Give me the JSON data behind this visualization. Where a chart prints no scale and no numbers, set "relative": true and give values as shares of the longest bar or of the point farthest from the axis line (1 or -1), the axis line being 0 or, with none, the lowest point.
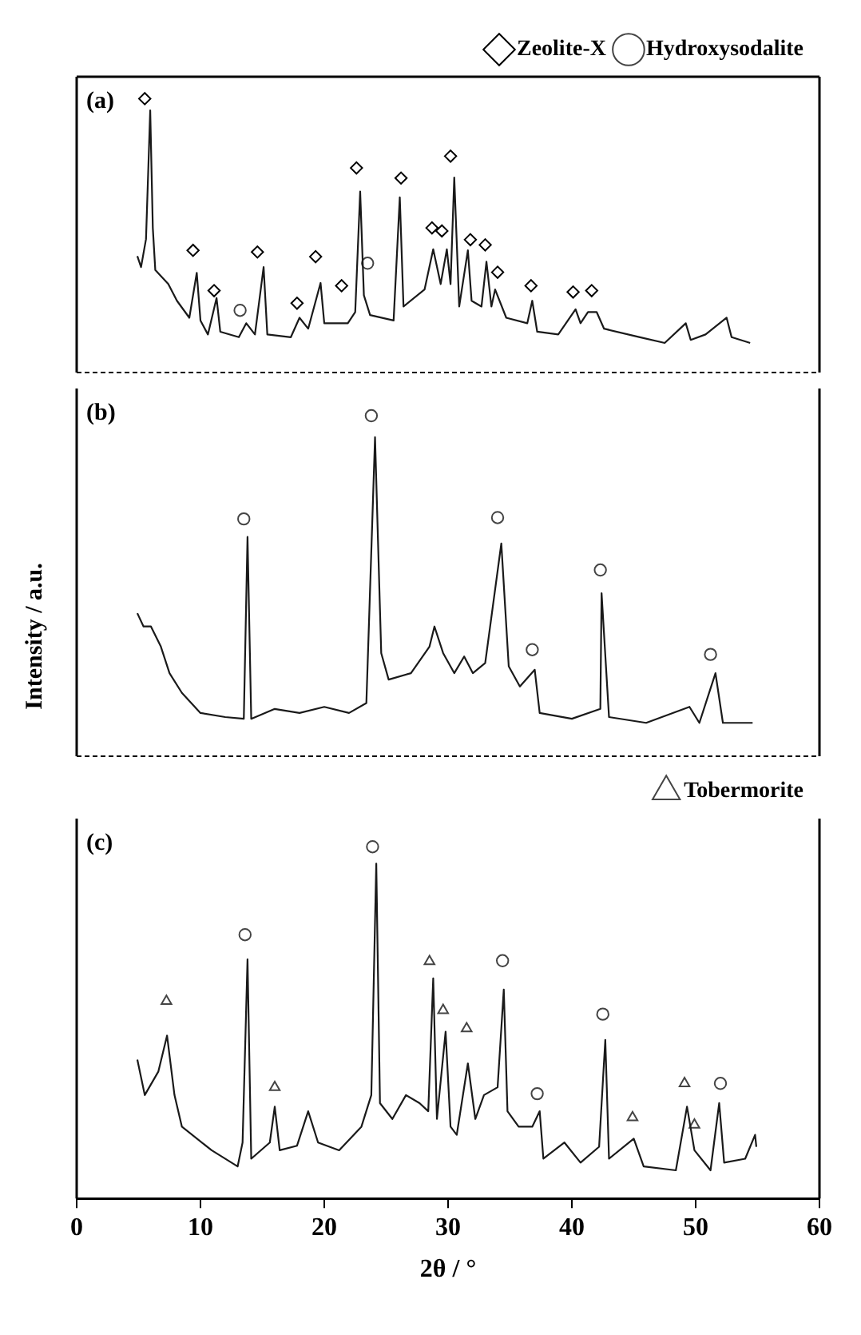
{
  "chart_data": [
    {
      "type": "line",
      "relative": true,
      "xlim": [
        0,
        60
      ],
      "tick_labels": false,
      "legend": "top right",
      "annotations": [
        "(a)"
      ],
      "series": [
        {
          "type": "line",
          "color": "#1a1a1a",
          "x": [
            4.9,
            5.2,
            5.6,
            5.94,
            6.15,
            6.35,
            7.4,
            8.1,
            9.1,
            9.7,
            10.0,
            10.6,
            11.3,
            11.6,
            13.1,
            13.7,
            14.4,
            15.1,
            15.4,
            17.3,
            18.0,
            18.7,
            19.7,
            20.0,
            21.9,
            22.5,
            22.9,
            23.2,
            23.7,
            25.6,
            26.1,
            26.4,
            28.1,
            28.8,
            29.4,
            29.9,
            30.2,
            30.5,
            30.9,
            31.6,
            31.9,
            32.7,
            33.1,
            33.5,
            33.8,
            34.7,
            36.4,
            36.8,
            37.2,
            38.9,
            40.3,
            40.7,
            41.3,
            42.0,
            42.6,
            45.5,
            47.5,
            49.2,
            49.6,
            50.8,
            52.5,
            52.9,
            54.4
          ],
          "values": [
            0.425,
            0.385,
            0.487,
            0.957,
            0.528,
            0.374,
            0.323,
            0.262,
            0.2,
            0.364,
            0.19,
            0.139,
            0.272,
            0.149,
            0.129,
            0.18,
            0.139,
            0.385,
            0.139,
            0.129,
            0.2,
            0.16,
            0.327,
            0.18,
            0.18,
            0.221,
            0.661,
            0.282,
            0.21,
            0.19,
            0.64,
            0.241,
            0.303,
            0.45,
            0.323,
            0.45,
            0.323,
            0.712,
            0.241,
            0.446,
            0.262,
            0.241,
            0.405,
            0.241,
            0.303,
            0.2,
            0.18,
            0.262,
            0.149,
            0.139,
            0.231,
            0.18,
            0.221,
            0.221,
            0.16,
            0.129,
            0.108,
            0.18,
            0.119,
            0.139,
            0.2,
            0.129,
            0.108
          ]
        },
        {
          "type": "scatter",
          "name": "Zeolite-X",
          "marker": "diamond",
          "color": "#000000",
          "x": [
            5.5,
            9.4,
            11.1,
            14.6,
            17.8,
            19.3,
            21.4,
            22.6,
            26.2,
            28.7,
            29.5,
            30.2,
            31.8,
            33.0,
            34.0,
            36.7,
            40.1,
            41.6
          ],
          "values": [
            1.0,
            0.446,
            0.299,
            0.44,
            0.253,
            0.423,
            0.317,
            0.747,
            0.71,
            0.528,
            0.517,
            0.79,
            0.485,
            0.466,
            0.366,
            0.317,
            0.294,
            0.299
          ]
        },
        {
          "type": "scatter",
          "name": "Hydroxysodalite",
          "marker": "circle",
          "color": "#444444",
          "x": [
            13.2,
            23.5
          ],
          "values": [
            0.227,
            0.399
          ]
        }
      ]
    },
    {
      "type": "line",
      "relative": true,
      "xlim": [
        0,
        60
      ],
      "tick_labels": false,
      "ylabel": "Intensity / a.u.",
      "annotations": [
        "(b)"
      ],
      "series": [
        {
          "type": "line",
          "color": "#1a1a1a",
          "x": [
            4.9,
            5.4,
            6.0,
            6.8,
            7.5,
            8.5,
            10,
            12,
            13.5,
            13.8,
            14.1,
            16,
            18,
            20,
            22,
            23.4,
            24.1,
            24.6,
            25.2,
            27,
            28.5,
            28.9,
            29.6,
            30.5,
            31.3,
            32.0,
            33.0,
            34.3,
            34.9,
            35.8,
            37.0,
            37.4,
            40,
            42.3,
            42.4,
            43.0,
            46,
            49.5,
            50.3,
            51.6,
            52.2,
            54.6
          ],
          "values": [
            0.42,
            0.381,
            0.381,
            0.322,
            0.244,
            0.186,
            0.127,
            0.115,
            0.11,
            0.644,
            0.11,
            0.139,
            0.127,
            0.145,
            0.127,
            0.156,
            0.937,
            0.303,
            0.225,
            0.244,
            0.322,
            0.381,
            0.303,
            0.244,
            0.293,
            0.244,
            0.274,
            0.625,
            0.264,
            0.205,
            0.254,
            0.127,
            0.11,
            0.139,
            0.479,
            0.115,
            0.098,
            0.145,
            0.098,
            0.244,
            0.098,
            0.098
          ]
        },
        {
          "type": "scatter",
          "marker": "circle",
          "color": "#444444",
          "x": [
            13.5,
            23.8,
            34.0,
            36.8,
            42.3,
            51.2
          ],
          "values": [
            0.697,
            1.0,
            0.701,
            0.313,
            0.547,
            0.299
          ]
        }
      ]
    },
    {
      "type": "line",
      "relative": true,
      "xlim": [
        0,
        60
      ],
      "xticks": [
        0,
        10,
        20,
        30,
        40,
        50,
        60
      ],
      "tick_labels": "x",
      "xlabel": "2θ / °",
      "legend": "top right",
      "annotations": [
        "(c)"
      ],
      "series": [
        {
          "type": "line",
          "color": "#1a1a1a",
          "x": [
            4.9,
            5.5,
            6.6,
            7.3,
            7.9,
            8.5,
            10.9,
            13.0,
            13.4,
            13.8,
            14.1,
            15.6,
            16.0,
            16.4,
            17.8,
            18.7,
            19.5,
            21.2,
            23.0,
            23.8,
            24.2,
            24.5,
            25.5,
            26.6,
            27.7,
            28.4,
            28.8,
            29.1,
            29.8,
            30.2,
            30.7,
            31.6,
            32.2,
            32.9,
            34.0,
            34.5,
            34.8,
            35.7,
            36.8,
            37.4,
            37.7,
            39.4,
            40.7,
            42.2,
            42.7,
            43.0,
            45.0,
            45.8,
            48.4,
            49.3,
            49.9,
            51.2,
            51.9,
            52.3,
            54.0,
            54.8,
            54.9
          ],
          "values": [
            0.395,
            0.294,
            0.361,
            0.463,
            0.294,
            0.204,
            0.137,
            0.091,
            0.159,
            0.68,
            0.113,
            0.159,
            0.261,
            0.137,
            0.15,
            0.248,
            0.159,
            0.137,
            0.204,
            0.294,
            0.952,
            0.271,
            0.226,
            0.294,
            0.271,
            0.248,
            0.626,
            0.226,
            0.474,
            0.204,
            0.181,
            0.384,
            0.226,
            0.294,
            0.316,
            0.594,
            0.248,
            0.204,
            0.204,
            0.248,
            0.113,
            0.159,
            0.102,
            0.147,
            0.451,
            0.113,
            0.17,
            0.091,
            0.08,
            0.261,
            0.137,
            0.08,
            0.271,
            0.102,
            0.113,
            0.181,
            0.147
          ]
        },
        {
          "type": "scatter",
          "marker": "circle",
          "color": "#444444",
          "x": [
            13.6,
            23.9,
            34.4,
            37.2,
            42.5,
            52.0
          ],
          "values": [
            0.75,
            1.0,
            0.676,
            0.298,
            0.524,
            0.327
          ]
        },
        {
          "type": "scatter",
          "name": "Tobermorite",
          "marker": "triangle",
          "color": "#444444",
          "x": [
            7.25,
            16.0,
            28.5,
            29.6,
            31.5,
            44.9,
            49.1,
            49.9
          ],
          "values": [
            0.561,
            0.316,
            0.674,
            0.535,
            0.483,
            0.23,
            0.327,
            0.209
          ]
        }
      ]
    }
  ]
}
